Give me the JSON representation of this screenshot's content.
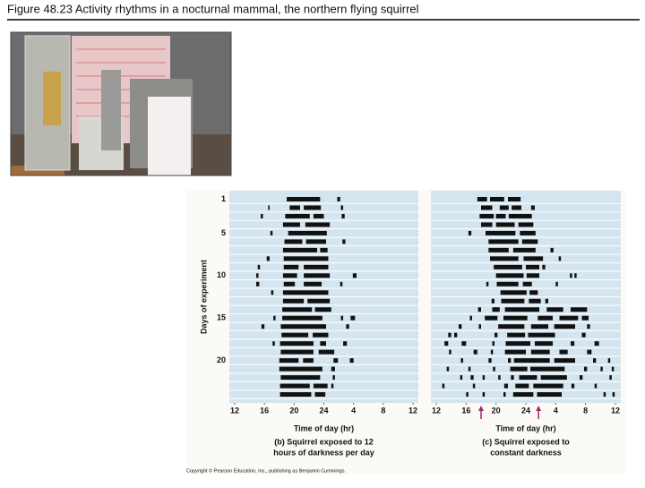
{
  "header": {
    "title": "Figure 48.23  Activity rhythms in a nocturnal mammal, the northern flying squirrel"
  },
  "footer": {
    "copyright": "Copyright © Pearson Education, Inc., publishing as Benjamin Cummings."
  },
  "chart_data": [
    {
      "type": "actogram",
      "title_lines": [
        "(b) Squirrel exposed to 12",
        "hours of darkness per day"
      ],
      "x_label": "Time of day (hr)",
      "y_label": "Days of experiment",
      "xlim": [
        12,
        36
      ],
      "xticks": [
        12,
        16,
        20,
        24,
        {
          "value": 28,
          "label": "4"
        },
        {
          "value": 32,
          "label": "8"
        },
        {
          "value": 36,
          "label": "12"
        }
      ],
      "ylim": [
        0,
        25
      ],
      "y_inverted": true,
      "yticks": [
        1,
        5,
        10,
        15,
        20
      ],
      "color": "#111111",
      "background": "#d5e5ef",
      "days": [
        [
          [
            19,
            23.5
          ],
          [
            25.8,
            26.2
          ]
        ],
        [
          [
            16.5,
            16.7
          ],
          [
            19.4,
            20.8
          ],
          [
            21.3,
            23.6
          ],
          [
            26.3,
            26.6
          ]
        ],
        [
          [
            15.5,
            15.8
          ],
          [
            18.8,
            22.1
          ],
          [
            22.6,
            24
          ],
          [
            26.4,
            26.8
          ]
        ],
        [
          [
            18.5,
            20.8
          ],
          [
            21.5,
            24.8
          ]
        ],
        [
          [
            16.8,
            17.1
          ],
          [
            19.2,
            24.4
          ]
        ],
        [
          [
            18.7,
            21.1
          ],
          [
            21.6,
            24.3
          ],
          [
            26.5,
            26.9
          ]
        ],
        [
          [
            18.5,
            23.1
          ],
          [
            23.5,
            24.5
          ]
        ],
        [
          [
            16.3,
            16.7
          ],
          [
            18.6,
            24.6
          ]
        ],
        [
          [
            15.1,
            15.4
          ],
          [
            18.6,
            20.6
          ],
          [
            21.3,
            24.6
          ]
        ],
        [
          [
            14.9,
            15.2
          ],
          [
            18.5,
            20.4
          ],
          [
            21.3,
            24.8
          ],
          [
            27.9,
            28.4
          ]
        ],
        [
          [
            14.9,
            15.3
          ],
          [
            18.6,
            20.1
          ],
          [
            21.3,
            23.7
          ],
          [
            26.2,
            26.5
          ]
        ],
        [
          [
            16.9,
            17.2
          ],
          [
            18.5,
            24.6
          ]
        ],
        [
          [
            18.5,
            21.3
          ],
          [
            21.8,
            24.8
          ]
        ],
        [
          [
            18.4,
            22.4
          ],
          [
            22.8,
            25
          ]
        ],
        [
          [
            17.2,
            17.5
          ],
          [
            18.4,
            23.8
          ],
          [
            26.3,
            26.6
          ],
          [
            27.6,
            28.2
          ]
        ],
        [
          [
            15.6,
            16
          ],
          [
            18.2,
            24.3
          ],
          [
            27,
            27.4
          ]
        ],
        [
          [
            18.3,
            21.9
          ],
          [
            22.5,
            24.6
          ]
        ],
        [
          [
            17.1,
            17.4
          ],
          [
            18.1,
            22.6
          ],
          [
            23.5,
            24.3
          ],
          [
            26.6,
            27.1
          ]
        ],
        [
          [
            18.2,
            22.6
          ],
          [
            23.3,
            25.4
          ]
        ],
        [
          [
            18,
            20.6
          ],
          [
            21.2,
            22.6
          ],
          [
            25.3,
            25.9
          ],
          [
            27.5,
            28
          ]
        ],
        [
          [
            18,
            23.8
          ],
          [
            25,
            25.5
          ]
        ],
        [
          [
            18.2,
            23.5
          ],
          [
            25.2,
            25.5
          ]
        ],
        [
          [
            18.1,
            22.1
          ],
          [
            22.6,
            24.5
          ],
          [
            25,
            25.3
          ]
        ],
        [
          [
            18.1,
            22.3
          ],
          [
            22.8,
            24.2
          ]
        ]
      ]
    },
    {
      "type": "actogram",
      "title_lines": [
        "(c) Squirrel exposed to",
        "constant darkness"
      ],
      "x_label": "Time of day (hr)",
      "xlim": [
        12,
        36
      ],
      "xticks": [
        12,
        16,
        20,
        24,
        {
          "value": 28,
          "label": "4"
        },
        {
          "value": 32,
          "label": "8"
        },
        {
          "value": 36,
          "label": "12"
        }
      ],
      "ylim": [
        0,
        25
      ],
      "y_inverted": true,
      "color": "#111111",
      "background": "#d5e5ef",
      "markers": [
        18,
        25.7
      ],
      "marker_color": "#a0286e",
      "days": [
        [
          [
            17.5,
            18.8
          ],
          [
            19.2,
            21.1
          ],
          [
            21.6,
            23.3
          ]
        ],
        [
          [
            18,
            19.5
          ],
          [
            20.5,
            21.7
          ],
          [
            22.1,
            23.4
          ],
          [
            24.7,
            25.2
          ]
        ],
        [
          [
            17.8,
            19.7
          ],
          [
            20,
            21.3
          ],
          [
            21.7,
            24.8
          ]
        ],
        [
          [
            18,
            19.5
          ],
          [
            20,
            22.5
          ],
          [
            23,
            25
          ]
        ],
        [
          [
            16.3,
            16.7
          ],
          [
            18.6,
            22.6
          ],
          [
            23.2,
            25.3
          ]
        ],
        [
          [
            19,
            23
          ],
          [
            23.5,
            25.6
          ]
        ],
        [
          [
            19,
            21.7
          ],
          [
            22.3,
            25.3
          ],
          [
            27.3,
            27.7
          ]
        ],
        [
          [
            19.2,
            23
          ],
          [
            23.7,
            26.3
          ],
          [
            28.4,
            28.7
          ]
        ],
        [
          [
            19.7,
            23.5
          ],
          [
            24,
            25.8
          ],
          [
            26.2,
            26.6
          ]
        ],
        [
          [
            20,
            23.7
          ],
          [
            24.1,
            25.8
          ],
          [
            29.9,
            30.2
          ],
          [
            30.5,
            30.8
          ]
        ],
        [
          [
            18.7,
            19
          ],
          [
            20.1,
            23
          ],
          [
            23.6,
            24.8
          ],
          [
            28,
            28.3
          ]
        ],
        [
          [
            20.6,
            24.1
          ],
          [
            24.5,
            25.6
          ]
        ],
        [
          [
            19.4,
            19.8
          ],
          [
            20.7,
            23.8
          ],
          [
            24.4,
            26
          ],
          [
            26.6,
            27
          ]
        ],
        [
          [
            17.6,
            18
          ],
          [
            19.5,
            20.5
          ],
          [
            21.2,
            25.8
          ],
          [
            26.8,
            29
          ],
          [
            30,
            32.2
          ]
        ],
        [
          [
            16.5,
            16.8
          ],
          [
            18.5,
            20.2
          ],
          [
            21,
            24.2
          ],
          [
            25.6,
            27.6
          ],
          [
            28.5,
            31
          ],
          [
            31.5,
            32.4
          ]
        ],
        [
          [
            15,
            15.4
          ],
          [
            17.7,
            18
          ],
          [
            20.3,
            23.8
          ],
          [
            24.7,
            27
          ],
          [
            27.8,
            30.6
          ],
          [
            32.2,
            32.6
          ]
        ],
        [
          [
            13.6,
            14
          ],
          [
            14.4,
            14.8
          ],
          [
            19.8,
            20.2
          ],
          [
            21.5,
            23.9
          ],
          [
            24.3,
            27.9
          ],
          [
            31.5,
            32
          ]
        ],
        [
          [
            13.1,
            13.6
          ],
          [
            15.4,
            16
          ],
          [
            19.5,
            19.8
          ],
          [
            21.3,
            24.6
          ],
          [
            25.2,
            27.6
          ],
          [
            30,
            30.5
          ],
          [
            33.2,
            33.8
          ]
        ],
        [
          [
            13.7,
            14
          ],
          [
            17,
            17.5
          ],
          [
            19.3,
            19.6
          ],
          [
            21.2,
            24
          ],
          [
            24.7,
            27.2
          ],
          [
            28.5,
            29.6
          ],
          [
            32.2,
            32.8
          ]
        ],
        [
          [
            15.3,
            15.6
          ],
          [
            19,
            19.4
          ],
          [
            21.6,
            22
          ],
          [
            22.4,
            27.2
          ],
          [
            27.8,
            30.6
          ],
          [
            33,
            33.4
          ],
          [
            35,
            35.3
          ]
        ],
        [
          [
            13.4,
            13.7
          ],
          [
            16.3,
            16.6
          ],
          [
            19.6,
            19.9
          ],
          [
            21.9,
            24.2
          ],
          [
            24.6,
            29.2
          ],
          [
            31.8,
            32.2
          ],
          [
            34,
            34.3
          ],
          [
            35.5,
            35.8
          ]
        ],
        [
          [
            15.2,
            15.5
          ],
          [
            16.6,
            17
          ],
          [
            18.2,
            18.5
          ],
          [
            20.3,
            20.6
          ],
          [
            22,
            22.4
          ],
          [
            23.1,
            25.5
          ],
          [
            26,
            29.5
          ],
          [
            31.2,
            31.6
          ],
          [
            35.2,
            35.5
          ]
        ],
        [
          [
            12.8,
            13.1
          ],
          [
            16.9,
            17.2
          ],
          [
            21.1,
            21.6
          ],
          [
            22.6,
            24.4
          ],
          [
            25,
            29
          ],
          [
            30.1,
            30.5
          ],
          [
            33.2,
            33.5
          ]
        ],
        [
          [
            16,
            16.3
          ],
          [
            18.2,
            18.5
          ],
          [
            21,
            21.3
          ],
          [
            22.3,
            25
          ],
          [
            25.5,
            28.8
          ],
          [
            34.4,
            34.7
          ],
          [
            35.6,
            35.9
          ]
        ]
      ]
    }
  ]
}
